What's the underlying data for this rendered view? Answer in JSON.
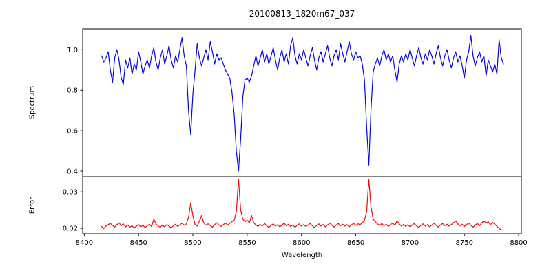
{
  "title": "20100813_1820m67_037",
  "colors": {
    "background": "#ffffff",
    "axis": "#000000",
    "spectrum_line": "#0000ff",
    "error_line": "#ff0000"
  },
  "chart_data": {
    "type": "line",
    "title": "20100813_1820m67_037",
    "xlabel": "Wavelength",
    "grid": false,
    "legend": "none",
    "x_start": 8416,
    "x_step": 2,
    "xlim": [
      8398.5,
      8802.5
    ],
    "x_ticks": [
      8400,
      8450,
      8500,
      8550,
      8600,
      8650,
      8700,
      8750,
      8800
    ],
    "x_tick_labels": [
      "8400",
      "8450",
      "8500",
      "8550",
      "8600",
      "8650",
      "8700",
      "8750",
      "8800"
    ],
    "panels": [
      {
        "name": "spectrum",
        "ylabel": "Spectrum",
        "color": "#0000ff",
        "ylim": [
          0.373,
          1.103
        ],
        "y_ticks": [
          0.4,
          0.6,
          0.8,
          1.0
        ],
        "y_tick_labels": [
          "0.4",
          "0.6",
          "0.8",
          "1.0"
        ],
        "features_note": "absorption dips near 8498, 8542 (deepest, 0.40), 8662",
        "values": [
          0.97,
          0.94,
          0.96,
          0.99,
          0.9,
          0.84,
          0.96,
          1.0,
          0.95,
          0.86,
          0.83,
          0.95,
          0.91,
          0.96,
          0.88,
          0.93,
          0.9,
          0.99,
          0.94,
          0.88,
          0.92,
          0.95,
          0.91,
          0.97,
          1.01,
          0.94,
          0.9,
          0.96,
          1.0,
          0.93,
          0.97,
          1.02,
          0.95,
          0.91,
          0.97,
          0.94,
          1.0,
          1.06,
          0.97,
          0.92,
          0.7,
          0.58,
          0.78,
          0.9,
          1.03,
          0.96,
          0.92,
          0.96,
          1.0,
          0.95,
          1.04,
          0.99,
          0.93,
          0.98,
          0.95,
          0.96,
          0.93,
          0.9,
          0.88,
          0.86,
          0.79,
          0.68,
          0.5,
          0.4,
          0.56,
          0.77,
          0.85,
          0.86,
          0.84,
          0.87,
          0.92,
          0.97,
          0.92,
          0.96,
          1.0,
          0.94,
          0.98,
          0.93,
          0.97,
          1.01,
          0.95,
          0.9,
          0.96,
          1.0,
          0.94,
          0.98,
          0.93,
          1.02,
          1.06,
          0.97,
          0.93,
          0.98,
          0.95,
          1.0,
          0.96,
          0.92,
          0.97,
          1.01,
          0.95,
          0.9,
          0.96,
          0.99,
          0.94,
          0.98,
          1.02,
          0.96,
          0.92,
          0.97,
          1.0,
          0.95,
          1.03,
          0.98,
          0.94,
          0.99,
          1.04,
          0.98,
          0.95,
          0.99,
          0.96,
          0.97,
          0.93,
          0.85,
          0.62,
          0.43,
          0.7,
          0.89,
          0.93,
          0.96,
          0.92,
          0.97,
          1.0,
          0.95,
          0.98,
          0.94,
          0.97,
          0.9,
          0.84,
          0.93,
          0.97,
          0.94,
          0.98,
          0.95,
          1.0,
          0.96,
          0.92,
          0.97,
          1.01,
          0.96,
          0.93,
          0.98,
          0.95,
          1.0,
          0.97,
          0.93,
          0.98,
          1.02,
          0.96,
          0.92,
          0.97,
          1.0,
          0.95,
          0.91,
          0.96,
          0.99,
          0.94,
          0.97,
          0.92,
          0.86,
          0.95,
          0.99,
          1.07,
          0.97,
          0.92,
          0.96,
          0.99,
          0.94,
          0.97,
          0.87,
          0.95,
          0.92,
          0.89,
          0.93,
          0.88,
          1.05,
          0.96,
          0.93
        ]
      },
      {
        "name": "error",
        "ylabel": "Error",
        "color": "#ff0000",
        "ylim": [
          0.0185,
          0.0342
        ],
        "y_ticks": [
          0.02,
          0.03
        ],
        "y_tick_labels": [
          "0.02",
          "0.03"
        ],
        "features_note": "noise spikes near 8498 (0.027), 8542 (0.0335), 8662 (0.0335)",
        "values": [
          0.0205,
          0.0199,
          0.0206,
          0.021,
          0.0213,
          0.0208,
          0.0203,
          0.021,
          0.0215,
          0.0207,
          0.0212,
          0.0204,
          0.0209,
          0.0203,
          0.0207,
          0.0201,
          0.0206,
          0.021,
          0.0204,
          0.0208,
          0.0202,
          0.0207,
          0.0211,
          0.0205,
          0.0225,
          0.0212,
          0.0206,
          0.0203,
          0.0208,
          0.0204,
          0.021,
          0.0206,
          0.0201,
          0.0207,
          0.0211,
          0.0205,
          0.0209,
          0.0214,
          0.0208,
          0.0212,
          0.023,
          0.027,
          0.0235,
          0.021,
          0.0206,
          0.022,
          0.0235,
          0.0215,
          0.0208,
          0.0212,
          0.0207,
          0.0203,
          0.021,
          0.0215,
          0.0209,
          0.0205,
          0.021,
          0.0214,
          0.0209,
          0.0213,
          0.0218,
          0.0222,
          0.0245,
          0.0335,
          0.025,
          0.0225,
          0.0218,
          0.0222,
          0.0215,
          0.0235,
          0.0215,
          0.0209,
          0.0205,
          0.0211,
          0.0206,
          0.0213,
          0.0207,
          0.0202,
          0.0208,
          0.0212,
          0.0206,
          0.021,
          0.0204,
          0.0209,
          0.0214,
          0.0207,
          0.0211,
          0.0205,
          0.0209,
          0.0203,
          0.0208,
          0.0212,
          0.0206,
          0.021,
          0.0205,
          0.0209,
          0.0213,
          0.0207,
          0.0202,
          0.0208,
          0.0212,
          0.0206,
          0.021,
          0.0204,
          0.0209,
          0.0214,
          0.0208,
          0.0203,
          0.0209,
          0.0213,
          0.0207,
          0.0211,
          0.0206,
          0.021,
          0.0204,
          0.0209,
          0.0214,
          0.0208,
          0.0212,
          0.021,
          0.0215,
          0.0222,
          0.0245,
          0.0335,
          0.026,
          0.0225,
          0.0218,
          0.0212,
          0.0208,
          0.0213,
          0.0207,
          0.0211,
          0.0205,
          0.021,
          0.0214,
          0.0208,
          0.022,
          0.0212,
          0.0206,
          0.0211,
          0.0205,
          0.021,
          0.0204,
          0.0209,
          0.0213,
          0.0207,
          0.0202,
          0.0208,
          0.0212,
          0.0206,
          0.021,
          0.0204,
          0.0209,
          0.0214,
          0.0208,
          0.0203,
          0.0209,
          0.0213,
          0.0207,
          0.0211,
          0.0206,
          0.021,
          0.0215,
          0.022,
          0.0212,
          0.0207,
          0.0211,
          0.0205,
          0.021,
          0.0214,
          0.0208,
          0.0203,
          0.0209,
          0.0213,
          0.0207,
          0.0215,
          0.022,
          0.0214,
          0.0218,
          0.021,
          0.0216,
          0.0211,
          0.0205,
          0.02,
          0.0196,
          0.0195
        ]
      }
    ]
  }
}
